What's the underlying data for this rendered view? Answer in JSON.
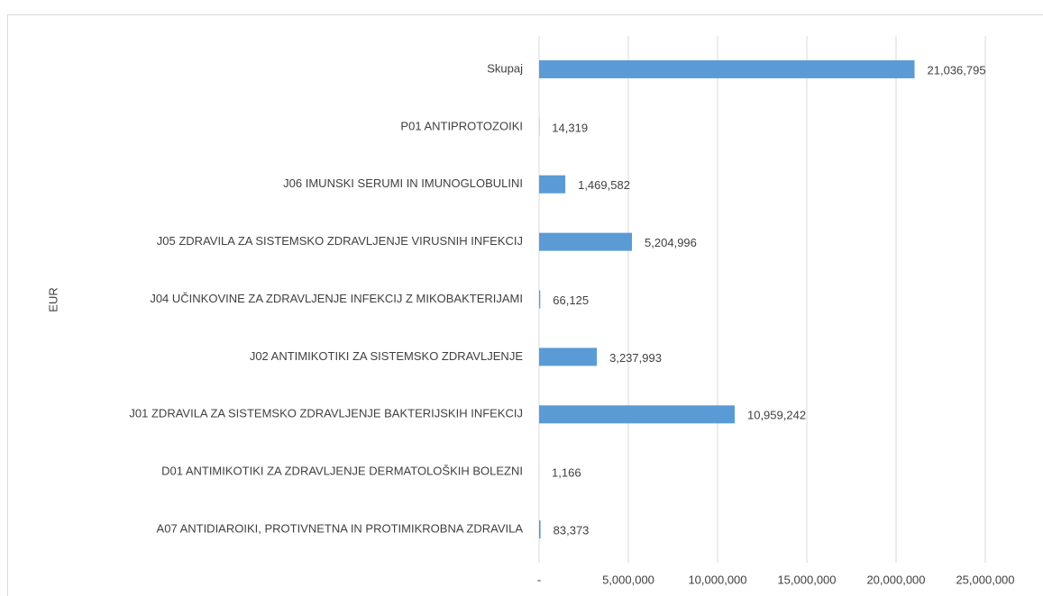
{
  "chart_data": {
    "type": "bar",
    "orientation": "horizontal",
    "y_label": "EUR",
    "categories": [
      "Skupaj",
      "P01 ANTIPROTOZOIKI",
      "J06 IMUNSKI SERUMI IN IMUNOGLOBULINI",
      "J05 ZDRAVILA ZA SISTEMSKO ZDRAVLJENJE VIRUSNIH INFEKCIJ",
      "J04 UČINKOVINE ZA ZDRAVLJENJE INFEKCIJ Z MIKOBAKTERIJAMI",
      "J02 ANTIMIKOTIKI ZA SISTEMSKO ZDRAVLJENJE",
      "J01 ZDRAVILA ZA SISTEMSKO ZDRAVLJENJE BAKTERIJSKIH INFEKCIJ",
      "D01 ANTIMIKOTIKI ZA ZDRAVLJENJE DERMATOLOŠKIH BOLEZNI",
      "A07 ANTIDIAROIKI, PROTIVNETNA IN PROTIMIKROBNA ZDRAVILA"
    ],
    "values": [
      21036795,
      14319,
      1469582,
      5204996,
      66125,
      3237993,
      10959242,
      1166,
      83373
    ],
    "value_labels": [
      "21,036,795",
      "14,319",
      "1,469,582",
      "5,204,996",
      "66,125",
      "3,237,993",
      "10,959,242",
      "1,166",
      "83,373"
    ],
    "color": "#5b9bd5",
    "xlim": [
      0,
      25000000
    ],
    "xticks": [
      {
        "value": 0,
        "label": "-"
      },
      {
        "value": 5000000,
        "label": "5,000,000"
      },
      {
        "value": 10000000,
        "label": "10,000,000"
      },
      {
        "value": 15000000,
        "label": "15,000,000"
      },
      {
        "value": 20000000,
        "label": "20,000,000"
      },
      {
        "value": 25000000,
        "label": "25,000,000"
      }
    ],
    "grid": true
  }
}
